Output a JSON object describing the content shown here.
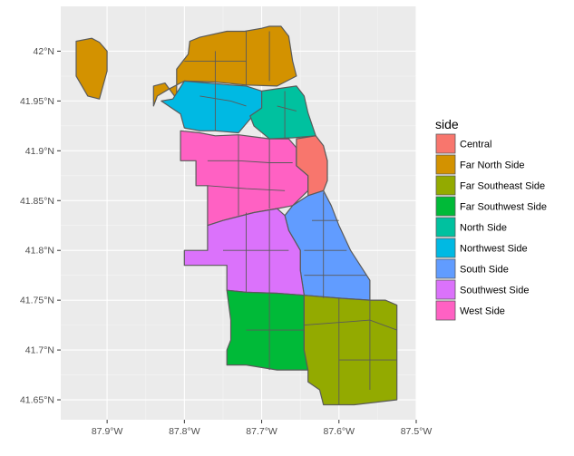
{
  "chart_data": {
    "type": "map",
    "x_axis": {
      "ticks": [
        {
          "value": -87.9,
          "label": "87.9°W"
        },
        {
          "value": -87.8,
          "label": "87.8°W"
        },
        {
          "value": -87.7,
          "label": "87.7°W"
        },
        {
          "value": -87.6,
          "label": "87.6°W"
        },
        {
          "value": -87.5,
          "label": "87.5°W"
        }
      ],
      "range": [
        -87.96,
        -87.5
      ]
    },
    "y_axis": {
      "ticks": [
        {
          "value": 42.0,
          "label": "42°N"
        },
        {
          "value": 41.95,
          "label": "41.95°N"
        },
        {
          "value": 41.9,
          "label": "41.9°N"
        },
        {
          "value": 41.85,
          "label": "41.85°N"
        },
        {
          "value": 41.8,
          "label": "41.8°N"
        },
        {
          "value": 41.75,
          "label": "41.75°N"
        },
        {
          "value": 41.7,
          "label": "41.7°N"
        },
        {
          "value": 41.65,
          "label": "41.65°N"
        }
      ],
      "range": [
        41.63,
        42.045
      ]
    },
    "grid": true,
    "legend": {
      "title": "side",
      "placement": "right",
      "entries": [
        {
          "label": "Central",
          "color": "#F8766D"
        },
        {
          "label": "Far North Side",
          "color": "#D39200"
        },
        {
          "label": "Far Southeast Side",
          "color": "#93AA00"
        },
        {
          "label": "Far Southwest Side",
          "color": "#00BA38"
        },
        {
          "label": "North Side",
          "color": "#00C19F"
        },
        {
          "label": "Northwest Side",
          "color": "#00B9E3"
        },
        {
          "label": "South Side",
          "color": "#619CFF"
        },
        {
          "label": "Southwest Side",
          "color": "#DB72FB"
        },
        {
          "label": "West Side",
          "color": "#FF61C3"
        }
      ]
    },
    "regions": [
      {
        "side": "Far North Side",
        "polygon": [
          [
            -87.94,
            42.01
          ],
          [
            -87.92,
            42.013
          ],
          [
            -87.91,
            42.009
          ],
          [
            -87.9,
            42.0
          ],
          [
            -87.9,
            41.98
          ],
          [
            -87.91,
            41.952
          ],
          [
            -87.925,
            41.955
          ],
          [
            -87.94,
            41.975
          ],
          [
            -87.94,
            41.99
          ]
        ]
      },
      {
        "side": "Far North Side",
        "polygon": [
          [
            -87.84,
            41.965
          ],
          [
            -87.825,
            41.968
          ],
          [
            -87.81,
            41.952
          ],
          [
            -87.81,
            41.982
          ],
          [
            -87.8,
            41.992
          ],
          [
            -87.795,
            41.997
          ],
          [
            -87.793,
            42.01
          ],
          [
            -87.78,
            42.014
          ],
          [
            -87.745,
            42.02
          ],
          [
            -87.722,
            42.02
          ],
          [
            -87.7,
            42.023
          ],
          [
            -87.69,
            42.025
          ],
          [
            -87.675,
            42.025
          ],
          [
            -87.665,
            42.015
          ],
          [
            -87.66,
            41.99
          ],
          [
            -87.655,
            41.975
          ],
          [
            -87.68,
            41.965
          ],
          [
            -87.72,
            41.966
          ],
          [
            -87.76,
            41.969
          ],
          [
            -87.8,
            41.97
          ],
          [
            -87.82,
            41.962
          ],
          [
            -87.835,
            41.955
          ],
          [
            -87.84,
            41.945
          ]
        ]
      },
      {
        "side": "Northwest Side",
        "polygon": [
          [
            -87.815,
            41.952
          ],
          [
            -87.8,
            41.97
          ],
          [
            -87.74,
            41.966
          ],
          [
            -87.72,
            41.965
          ],
          [
            -87.7,
            41.96
          ],
          [
            -87.69,
            41.955
          ],
          [
            -87.7,
            41.943
          ],
          [
            -87.715,
            41.932
          ],
          [
            -87.73,
            41.918
          ],
          [
            -87.76,
            41.92
          ],
          [
            -87.78,
            41.92
          ],
          [
            -87.8,
            41.923
          ],
          [
            -87.805,
            41.937
          ],
          [
            -87.83,
            41.95
          ]
        ]
      },
      {
        "side": "North Side",
        "polygon": [
          [
            -87.7,
            41.96
          ],
          [
            -87.655,
            41.965
          ],
          [
            -87.645,
            41.955
          ],
          [
            -87.64,
            41.938
          ],
          [
            -87.63,
            41.915
          ],
          [
            -87.66,
            41.913
          ],
          [
            -87.69,
            41.912
          ],
          [
            -87.71,
            41.925
          ],
          [
            -87.715,
            41.935
          ],
          [
            -87.7,
            41.943
          ]
        ]
      },
      {
        "side": "West Side",
        "polygon": [
          [
            -87.805,
            41.92
          ],
          [
            -87.78,
            41.918
          ],
          [
            -87.76,
            41.915
          ],
          [
            -87.73,
            41.916
          ],
          [
            -87.7,
            41.913
          ],
          [
            -87.69,
            41.912
          ],
          [
            -87.665,
            41.912
          ],
          [
            -87.655,
            41.903
          ],
          [
            -87.655,
            41.885
          ],
          [
            -87.64,
            41.875
          ],
          [
            -87.64,
            41.86
          ],
          [
            -87.66,
            41.845
          ],
          [
            -87.68,
            41.842
          ],
          [
            -87.71,
            41.838
          ],
          [
            -87.75,
            41.83
          ],
          [
            -87.77,
            41.825
          ],
          [
            -87.77,
            41.865
          ],
          [
            -87.785,
            41.865
          ],
          [
            -87.785,
            41.89
          ],
          [
            -87.805,
            41.89
          ]
        ]
      },
      {
        "side": "Central",
        "polygon": [
          [
            -87.655,
            41.912
          ],
          [
            -87.63,
            41.915
          ],
          [
            -87.62,
            41.905
          ],
          [
            -87.615,
            41.89
          ],
          [
            -87.615,
            41.87
          ],
          [
            -87.62,
            41.86
          ],
          [
            -87.64,
            41.855
          ],
          [
            -87.64,
            41.875
          ],
          [
            -87.655,
            41.885
          ]
        ]
      },
      {
        "side": "South Side",
        "polygon": [
          [
            -87.66,
            41.845
          ],
          [
            -87.64,
            41.855
          ],
          [
            -87.62,
            41.86
          ],
          [
            -87.61,
            41.845
          ],
          [
            -87.6,
            41.825
          ],
          [
            -87.585,
            41.8
          ],
          [
            -87.56,
            41.77
          ],
          [
            -87.56,
            41.75
          ],
          [
            -87.6,
            41.752
          ],
          [
            -87.645,
            41.755
          ],
          [
            -87.65,
            41.78
          ],
          [
            -87.65,
            41.8
          ],
          [
            -87.665,
            41.82
          ],
          [
            -87.67,
            41.835
          ]
        ]
      },
      {
        "side": "Southwest Side",
        "polygon": [
          [
            -87.77,
            41.825
          ],
          [
            -87.75,
            41.83
          ],
          [
            -87.71,
            41.838
          ],
          [
            -87.68,
            41.842
          ],
          [
            -87.67,
            41.835
          ],
          [
            -87.665,
            41.82
          ],
          [
            -87.65,
            41.8
          ],
          [
            -87.65,
            41.78
          ],
          [
            -87.645,
            41.755
          ],
          [
            -87.68,
            41.757
          ],
          [
            -87.72,
            41.758
          ],
          [
            -87.745,
            41.76
          ],
          [
            -87.745,
            41.785
          ],
          [
            -87.8,
            41.785
          ],
          [
            -87.8,
            41.8
          ],
          [
            -87.77,
            41.8
          ]
        ]
      },
      {
        "side": "Far Southwest Side",
        "polygon": [
          [
            -87.745,
            41.76
          ],
          [
            -87.72,
            41.758
          ],
          [
            -87.68,
            41.757
          ],
          [
            -87.645,
            41.755
          ],
          [
            -87.645,
            41.7
          ],
          [
            -87.64,
            41.68
          ],
          [
            -87.68,
            41.68
          ],
          [
            -87.72,
            41.685
          ],
          [
            -87.745,
            41.685
          ],
          [
            -87.745,
            41.7
          ],
          [
            -87.74,
            41.71
          ],
          [
            -87.74,
            41.73
          ]
        ]
      },
      {
        "side": "Far Southeast Side",
        "polygon": [
          [
            -87.645,
            41.755
          ],
          [
            -87.6,
            41.752
          ],
          [
            -87.56,
            41.75
          ],
          [
            -87.54,
            41.75
          ],
          [
            -87.525,
            41.745
          ],
          [
            -87.525,
            41.65
          ],
          [
            -87.58,
            41.645
          ],
          [
            -87.62,
            41.645
          ],
          [
            -87.625,
            41.66
          ],
          [
            -87.64,
            41.668
          ],
          [
            -87.64,
            41.68
          ],
          [
            -87.645,
            41.7
          ]
        ]
      }
    ]
  }
}
